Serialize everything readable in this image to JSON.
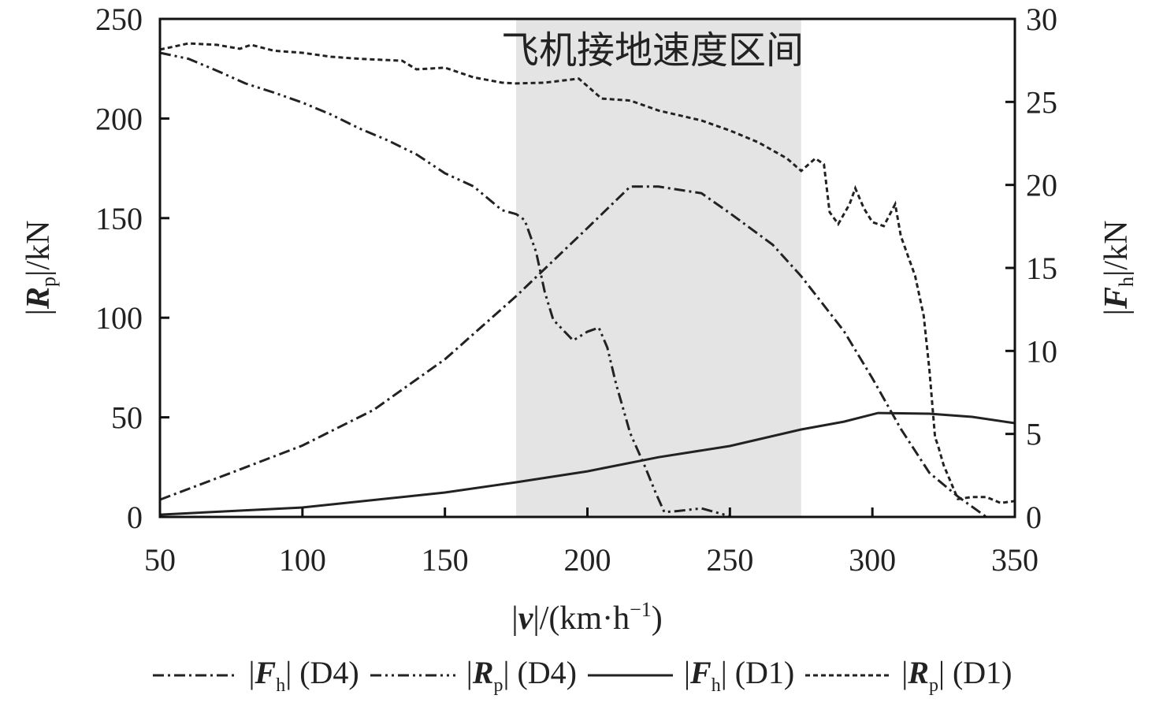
{
  "chart_data": {
    "type": "line",
    "annotation": "飞机接地速度区间",
    "shaded_region": {
      "x": [
        175,
        275
      ],
      "color": "#e4e4e4"
    },
    "xlabel": {
      "pre": "|",
      "sym": "v",
      "post": "|/(km·h",
      "sup": "−1",
      "end": ")"
    },
    "ylabel_left": {
      "sym": "R",
      "sub": "p",
      "post": "|/kN"
    },
    "ylabel_right": {
      "sym": "F",
      "sub": "h",
      "post": "|/kN"
    },
    "xlim": [
      50,
      350
    ],
    "ylim_left": [
      0,
      250
    ],
    "ylim_right": [
      0,
      30
    ],
    "xticks": [
      "50",
      "100",
      "150",
      "200",
      "250",
      "300",
      "350"
    ],
    "yticks_left": [
      "0",
      "50",
      "100",
      "150",
      "200",
      "250"
    ],
    "yticks_right": [
      "0",
      "5",
      "10",
      "15",
      "20",
      "25",
      "30"
    ],
    "grid": false,
    "legend_position": "bottom",
    "series": [
      {
        "name": "|Fh| (D4)",
        "sym": "F",
        "sub": "h",
        "suffix": "(D4)",
        "axis": "right",
        "style": "dash-dot",
        "color": "#222222",
        "x": [
          50,
          75,
          100,
          125,
          150,
          175,
          200,
          215,
          225,
          240,
          250,
          265,
          275,
          290,
          300,
          310,
          320,
          330,
          340
        ],
        "y": [
          1.04,
          2.66,
          4.3,
          6.45,
          9.5,
          13.3,
          17.4,
          19.9,
          19.9,
          19.5,
          18.3,
          16.4,
          14.5,
          11.2,
          8.35,
          5.3,
          2.66,
          1.23,
          0
        ]
      },
      {
        "name": "|Rp| (D4)",
        "sym": "R",
        "sub": "p",
        "suffix": "(D4)",
        "axis": "left",
        "style": "dash-dot-dot",
        "color": "#222222",
        "x": [
          50,
          60,
          70,
          80,
          90,
          100,
          110,
          120,
          130,
          140,
          150,
          160,
          170,
          175,
          178,
          182,
          185,
          188,
          192,
          195,
          200,
          204,
          207,
          210,
          215,
          220,
          224,
          227,
          232,
          240,
          250
        ],
        "y": [
          233,
          230,
          224,
          217.6,
          213,
          208,
          202,
          195,
          189,
          182,
          172.5,
          166,
          154,
          152,
          149,
          133,
          113,
          99,
          93,
          88.6,
          93,
          95,
          85,
          67,
          42,
          26,
          12,
          2.4,
          3,
          4.3,
          0.4
        ]
      },
      {
        "name": "|Fh| (D1)",
        "sym": "F",
        "sub": "h",
        "suffix": "(D1)",
        "axis": "right",
        "style": "solid",
        "color": "#222222",
        "x": [
          50,
          100,
          150,
          175,
          200,
          225,
          250,
          275,
          290,
          302,
          320,
          335,
          350
        ],
        "y": [
          0.14,
          0.57,
          1.47,
          2.09,
          2.75,
          3.6,
          4.27,
          5.27,
          5.74,
          6.26,
          6.22,
          6.03,
          5.65
        ]
      },
      {
        "name": "|Rp| (D1)",
        "sym": "R",
        "sub": "p",
        "suffix": "(D1)",
        "axis": "left",
        "style": "dotted",
        "color": "#222222",
        "x": [
          50,
          60,
          70,
          78,
          82,
          90,
          100,
          110,
          120,
          135,
          140,
          150,
          160,
          170,
          175,
          185,
          197,
          205,
          215,
          225,
          240,
          250,
          260,
          270,
          275,
          280,
          283,
          285,
          288,
          292,
          294,
          297,
          300,
          304,
          308,
          310,
          315,
          318,
          320,
          322,
          323,
          325,
          330,
          335,
          340,
          345,
          350
        ],
        "y": [
          234.6,
          237.7,
          237,
          235,
          237,
          234,
          233,
          231,
          230,
          229,
          224.7,
          225.5,
          220.7,
          218,
          217.6,
          218,
          220,
          210,
          209,
          204,
          199,
          194,
          188,
          180,
          173.7,
          180,
          177,
          153,
          147,
          157,
          165,
          155,
          148,
          146,
          157,
          141,
          121,
          101,
          74,
          40,
          36,
          26,
          9,
          10,
          10,
          7,
          8
        ]
      }
    ]
  }
}
